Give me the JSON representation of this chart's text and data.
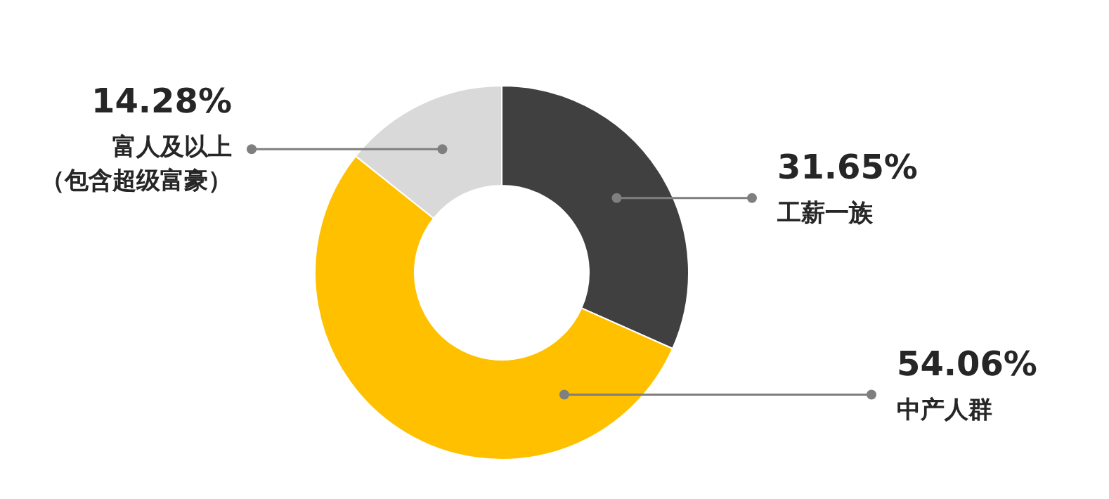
{
  "chart_data": {
    "type": "donut",
    "categories": [
      "工薪一族",
      "中产人群",
      "富人及以上（包含超级富豪）"
    ],
    "values": [
      31.65,
      54.06,
      14.28
    ],
    "colors": [
      "#404040",
      "#ffc000",
      "#d9d9d9"
    ],
    "value_labels": [
      "31.65%",
      "54.06%",
      "14.28%"
    ],
    "legend": false
  }
}
